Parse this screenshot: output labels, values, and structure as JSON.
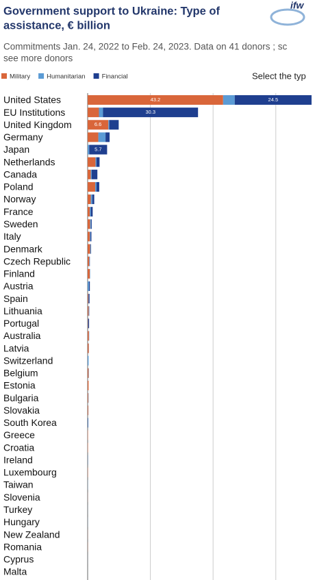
{
  "chart_data": {
    "type": "stacked-bar-horizontal",
    "title": [
      "Government support to Ukraine: Type of",
      "assistance, € billion"
    ],
    "subtitle": [
      "Commitments Jan. 24, 2022 to Feb. 24, 2023. Data on 41 donors ; sc",
      "see more donors"
    ],
    "control_label": "Select the typ",
    "logo": "ifw",
    "categories": [
      "United States",
      "EU Institutions",
      "United Kingdom",
      "Germany",
      "Japan",
      "Netherlands",
      "Canada",
      "Poland",
      "Norway",
      "France",
      "Sweden",
      "Italy",
      "Denmark",
      "Czech Republic",
      "Finland",
      "Austria",
      "Spain",
      "Lithuania",
      "Portugal",
      "Australia",
      "Latvia",
      "Switzerland",
      "Belgium",
      "Estonia",
      "Bulgaria",
      "Slovakia",
      "South Korea",
      "Greece",
      "Croatia",
      "Ireland",
      "Luxembourg",
      "Taiwan",
      "Slovenia",
      "Turkey",
      "Hungary",
      "New Zealand",
      "Romania",
      "Cyprus",
      "Malta"
    ],
    "series": [
      {
        "name": "Military",
        "color": "#d9663a",
        "values": [
          43.2,
          3.6,
          6.6,
          3.4,
          0,
          2.5,
          1.0,
          2.4,
          1.0,
          0.7,
          0.8,
          0.7,
          0.8,
          0.5,
          0.7,
          0,
          0.2,
          0.3,
          0.1,
          0.4,
          0.35,
          0,
          0.3,
          0.3,
          0.2,
          0.2,
          0,
          0.1,
          0.1,
          0.05,
          0.1,
          0,
          0.05,
          0,
          0,
          0.04,
          0.04,
          0,
          0
        ]
      },
      {
        "name": "Humanitarian",
        "color": "#5b9bd5",
        "values": [
          3.7,
          1.3,
          0.3,
          2.3,
          0.5,
          0.3,
          0.3,
          0.4,
          0.5,
          0.3,
          0.3,
          0.2,
          0.2,
          0.1,
          0.1,
          0.4,
          0.1,
          0.1,
          0.1,
          0.1,
          0.05,
          0.3,
          0.1,
          0,
          0.1,
          0.05,
          0.1,
          0,
          0,
          0.1,
          0.02,
          0.05,
          0.02,
          0.02,
          0.03,
          0.01,
          0,
          0.01,
          0.005
        ]
      },
      {
        "name": "Financial",
        "color": "#1f3f8f",
        "values": [
          24.5,
          30.3,
          3.0,
          1.3,
          5.7,
          1.0,
          1.8,
          0.9,
          0.6,
          0.6,
          0.2,
          0.3,
          0.1,
          0.1,
          0,
          0.3,
          0.3,
          0.1,
          0.25,
          0,
          0,
          0,
          0,
          0,
          0,
          0,
          0.1,
          0,
          0,
          0,
          0,
          0,
          0,
          0,
          0,
          0,
          0,
          0,
          0
        ]
      }
    ],
    "xlim": [
      0,
      72.5
    ],
    "xticks": [
      0,
      20,
      40,
      60
    ],
    "grid": true
  }
}
